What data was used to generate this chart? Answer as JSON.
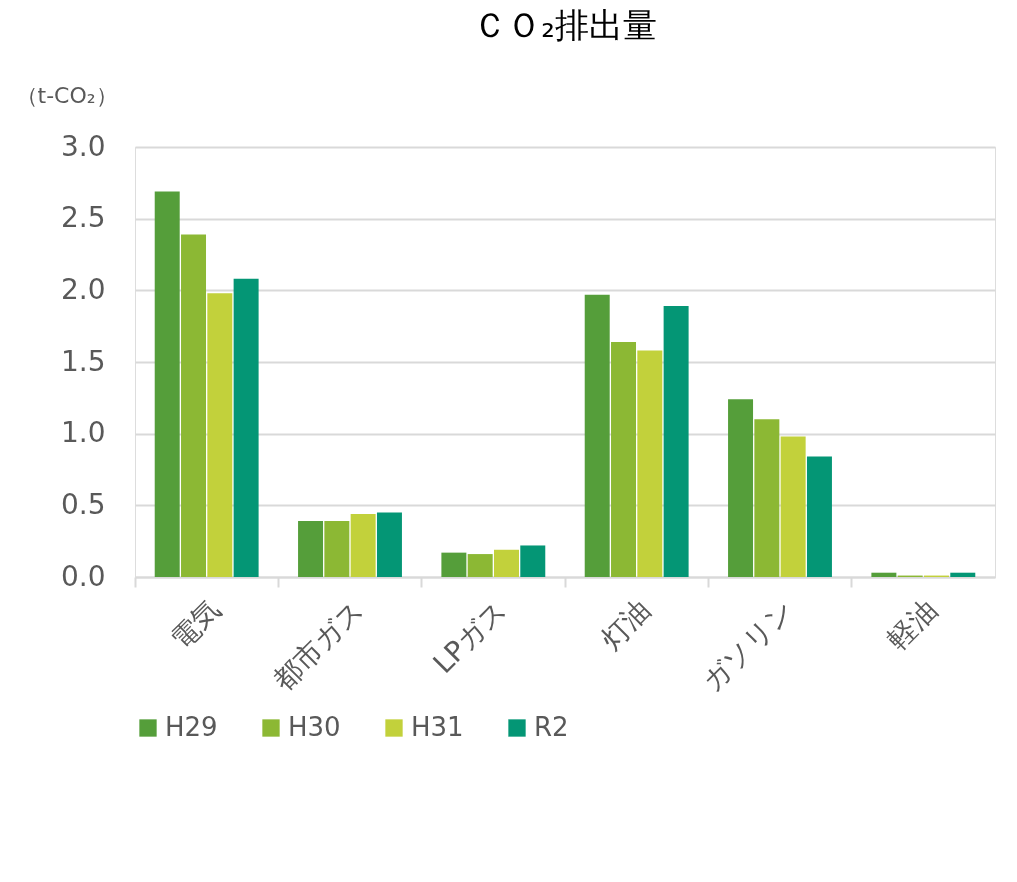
{
  "chart_data": {
    "type": "bar",
    "title": "ＣＯ₂排出量",
    "ylabel": "（t-CO₂）",
    "categories": [
      "電気",
      "都市ガス",
      "LPガス",
      "灯油",
      "ガソリン",
      "軽油"
    ],
    "series": [
      {
        "name": "H29",
        "color": "#559e3a",
        "values": [
          2.69,
          0.39,
          0.17,
          1.97,
          1.24,
          0.03
        ]
      },
      {
        "name": "H30",
        "color": "#8cb834",
        "values": [
          2.39,
          0.39,
          0.16,
          1.64,
          1.1,
          0.01
        ]
      },
      {
        "name": "H31",
        "color": "#c2d13b",
        "values": [
          1.98,
          0.44,
          0.19,
          1.58,
          0.98,
          0.01
        ]
      },
      {
        "name": "R2",
        "color": "#049675",
        "values": [
          2.08,
          0.45,
          0.22,
          1.89,
          0.84,
          0.03
        ]
      }
    ],
    "ylim": [
      0,
      3
    ],
    "yticks": [
      {
        "value": 0,
        "label": "0.0"
      },
      {
        "value": 0.5,
        "label": "0.5"
      },
      {
        "value": 1,
        "label": "1.0"
      },
      {
        "value": 1.5,
        "label": "1.5"
      },
      {
        "value": 2,
        "label": "2.0"
      },
      {
        "value": 2.5,
        "label": "2.5"
      },
      {
        "value": 3,
        "label": "3.0"
      }
    ],
    "grid": "y",
    "legend": "bottom"
  }
}
